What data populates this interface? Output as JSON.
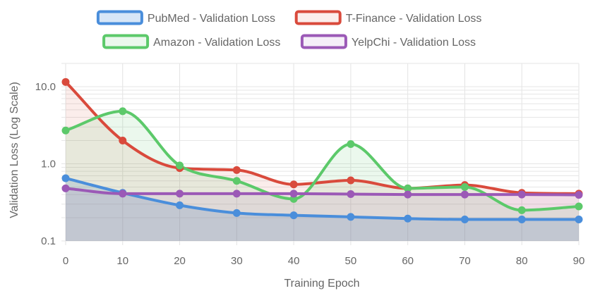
{
  "chart_data": {
    "type": "line",
    "title": "",
    "xlabel": "Training Epoch",
    "ylabel": "Validation Loss (Log Scale)",
    "y_scale": "log",
    "ylim": [
      0.1,
      20
    ],
    "xlim": [
      0,
      90
    ],
    "x_ticks": [
      0,
      10,
      20,
      30,
      40,
      50,
      60,
      70,
      80,
      90
    ],
    "y_ticks": [
      0.1,
      1.0,
      10.0
    ],
    "y_tick_labels": [
      "0.1",
      "1.0",
      "10.0"
    ],
    "grid": true,
    "legend_position": "top",
    "x": [
      0,
      10,
      20,
      30,
      40,
      50,
      60,
      70,
      80,
      90
    ],
    "series": [
      {
        "name": "PubMed - Validation Loss",
        "color": "#4a8edb",
        "fill": "rgba(74,142,219,0.22)",
        "values": [
          0.65,
          0.42,
          0.29,
          0.23,
          0.215,
          0.205,
          0.195,
          0.19,
          0.19,
          0.19
        ]
      },
      {
        "name": "T-Finance - Validation Loss",
        "color": "#d94a3c",
        "fill": "rgba(217,74,60,0.10)",
        "values": [
          11.5,
          2.0,
          0.88,
          0.83,
          0.54,
          0.61,
          0.48,
          0.53,
          0.42,
          0.41
        ]
      },
      {
        "name": "Amazon - Validation Loss",
        "color": "#5cc96a",
        "fill": "rgba(92,201,106,0.12)",
        "values": [
          2.7,
          4.8,
          0.95,
          0.6,
          0.35,
          1.8,
          0.48,
          0.5,
          0.25,
          0.28
        ]
      },
      {
        "name": "YelpChi - Validation Loss",
        "color": "#9b59b6",
        "fill": "rgba(155,89,182,0.10)",
        "values": [
          0.48,
          0.41,
          0.41,
          0.41,
          0.41,
          0.405,
          0.4,
          0.4,
          0.4,
          0.395
        ]
      }
    ]
  }
}
